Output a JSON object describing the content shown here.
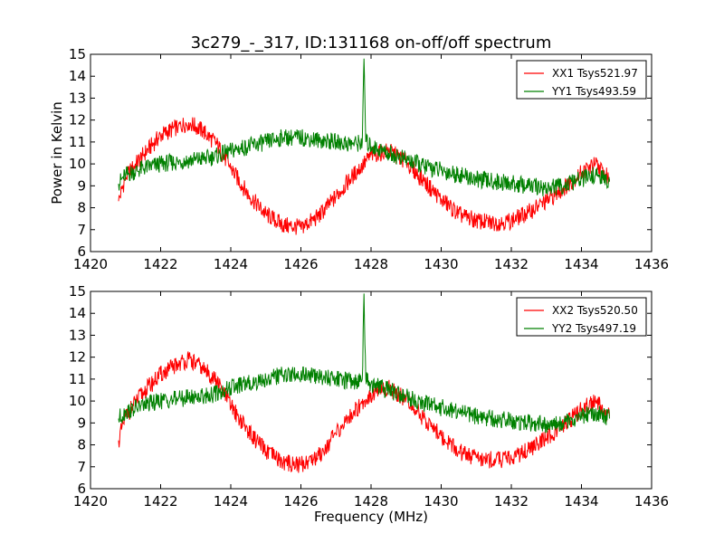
{
  "chart_data": {
    "type": "line",
    "title": "3c279_-_317, ID:131168 on-off/off spectrum",
    "xlabel": "Frequency (MHz)",
    "ylabel": "Power in Kelvin",
    "xlim": [
      1420,
      1436
    ],
    "ylim": [
      6,
      15
    ],
    "xticks": [
      1420,
      1422,
      1424,
      1426,
      1428,
      1430,
      1432,
      1434,
      1436
    ],
    "yticks": [
      6,
      7,
      8,
      9,
      10,
      11,
      12,
      13,
      14,
      15
    ],
    "grid": false,
    "legend_position": "top-right",
    "panels": [
      {
        "series": [
          {
            "name": "XX1 Tsys521.97",
            "color": "#ff0000",
            "x": [
              1420.8,
              1421.0,
              1421.5,
              1422.0,
              1422.5,
              1422.8,
              1423.2,
              1423.6,
              1424.0,
              1424.5,
              1425.0,
              1425.5,
              1426.0,
              1426.5,
              1427.0,
              1427.5,
              1427.8,
              1428.0,
              1428.5,
              1429.0,
              1429.5,
              1430.0,
              1430.5,
              1431.0,
              1431.5,
              1432.0,
              1432.5,
              1433.0,
              1433.5,
              1434.0,
              1434.4,
              1434.8
            ],
            "y": [
              8.3,
              9.4,
              10.4,
              11.3,
              11.7,
              11.9,
              11.5,
              10.9,
              9.8,
              8.6,
              7.7,
              7.2,
              7.1,
              7.6,
              8.5,
              9.5,
              10.0,
              10.4,
              10.6,
              10.1,
              9.2,
              8.4,
              7.7,
              7.4,
              7.3,
              7.4,
              7.8,
              8.3,
              8.9,
              9.6,
              10.0,
              9.3
            ]
          },
          {
            "name": "YY1 Tsys493.59",
            "color": "#008000",
            "x": [
              1420.8,
              1421.0,
              1421.5,
              1422.0,
              1422.5,
              1423.0,
              1423.5,
              1424.0,
              1424.5,
              1425.0,
              1425.5,
              1426.0,
              1426.5,
              1427.0,
              1427.5,
              1427.75,
              1427.8,
              1427.85,
              1428.0,
              1428.5,
              1429.0,
              1429.5,
              1430.0,
              1430.5,
              1431.0,
              1431.5,
              1432.0,
              1432.5,
              1433.0,
              1433.5,
              1434.0,
              1434.4,
              1434.8
            ],
            "y": [
              9.1,
              9.5,
              9.8,
              10.0,
              10.1,
              10.2,
              10.3,
              10.6,
              10.8,
              11.0,
              11.2,
              11.2,
              11.1,
              11.0,
              10.9,
              11.0,
              14.8,
              11.0,
              10.8,
              10.5,
              10.2,
              9.9,
              9.7,
              9.5,
              9.3,
              9.2,
              9.1,
              9.0,
              8.9,
              9.0,
              9.3,
              9.5,
              9.2
            ]
          }
        ]
      },
      {
        "series": [
          {
            "name": "XX2 Tsys520.50",
            "color": "#ff0000",
            "x": [
              1420.8,
              1421.0,
              1421.5,
              1422.0,
              1422.5,
              1422.8,
              1423.2,
              1423.6,
              1424.0,
              1424.5,
              1425.0,
              1425.5,
              1426.0,
              1426.5,
              1427.0,
              1427.5,
              1427.8,
              1428.0,
              1428.5,
              1429.0,
              1429.5,
              1430.0,
              1430.5,
              1431.0,
              1431.5,
              1432.0,
              1432.5,
              1433.0,
              1433.5,
              1434.0,
              1434.4,
              1434.8
            ],
            "y": [
              8.2,
              9.3,
              10.4,
              11.2,
              11.7,
              11.9,
              11.5,
              10.9,
              9.8,
              8.6,
              7.7,
              7.2,
              7.1,
              7.5,
              8.5,
              9.5,
              10.0,
              10.3,
              10.6,
              10.1,
              9.2,
              8.4,
              7.7,
              7.4,
              7.3,
              7.4,
              7.8,
              8.3,
              8.9,
              9.6,
              10.0,
              9.3
            ]
          },
          {
            "name": "YY2 Tsys497.19",
            "color": "#008000",
            "x": [
              1420.8,
              1421.0,
              1421.5,
              1422.0,
              1422.5,
              1423.0,
              1423.5,
              1424.0,
              1424.5,
              1425.0,
              1425.5,
              1426.0,
              1426.5,
              1427.0,
              1427.5,
              1427.75,
              1427.8,
              1427.85,
              1428.0,
              1428.5,
              1429.0,
              1429.5,
              1430.0,
              1430.5,
              1431.0,
              1431.5,
              1432.0,
              1432.5,
              1433.0,
              1433.5,
              1434.0,
              1434.4,
              1434.8
            ],
            "y": [
              9.2,
              9.5,
              9.8,
              10.0,
              10.1,
              10.2,
              10.3,
              10.6,
              10.8,
              11.0,
              11.2,
              11.2,
              11.1,
              11.0,
              10.9,
              11.0,
              14.9,
              11.0,
              10.8,
              10.5,
              10.2,
              9.9,
              9.7,
              9.5,
              9.3,
              9.2,
              9.1,
              9.0,
              8.9,
              9.0,
              9.3,
              9.5,
              9.2
            ]
          }
        ]
      }
    ]
  }
}
